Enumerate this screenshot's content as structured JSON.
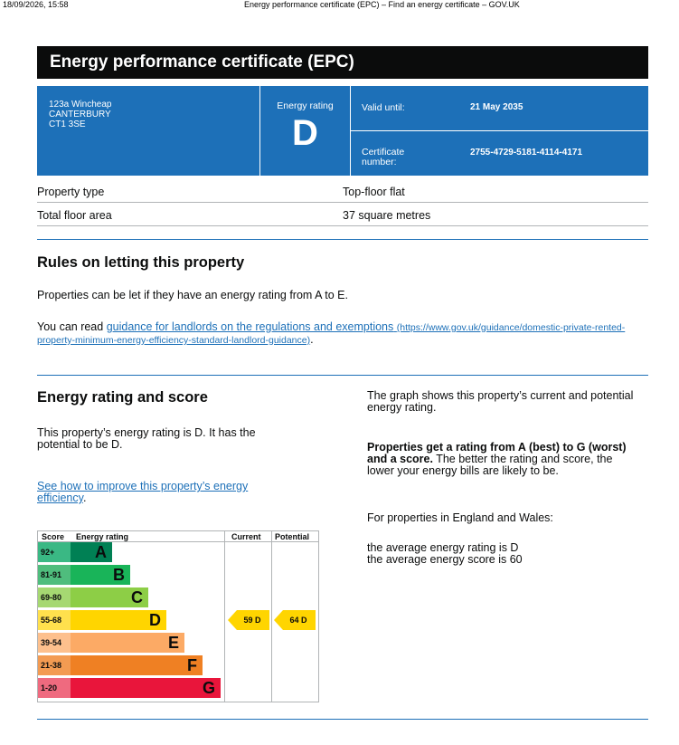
{
  "print_header": {
    "timestamp": "18/09/2026, 15:58",
    "page_title": "Energy performance certificate (EPC) – Find an energy certificate – GOV.UK"
  },
  "title": "Energy performance certificate (EPC)",
  "address": {
    "line1": "123a Wincheap",
    "line2": "CANTERBURY",
    "line3": "CT1 3SE"
  },
  "energy_rating": {
    "label": "Energy rating",
    "letter": "D"
  },
  "valid_until": {
    "label": "Valid until:",
    "value": "21 May 2035"
  },
  "certificate_number": {
    "label": "Certificate number:",
    "value": "2755-4729-5181-4114-4171"
  },
  "property": [
    {
      "key": "Property type",
      "value": "Top-floor flat"
    },
    {
      "key": "Total floor area",
      "value": "37 square metres"
    }
  ],
  "letting": {
    "heading": "Rules on letting this property",
    "para1": "Properties can be let if they have an energy rating from A to E.",
    "para2_prefix": "You can read ",
    "link_text": "guidance for landlords on the regulations and exemptions",
    "link_url": "(https://www.gov.uk/guidance/domestic-private-rented-property-minimum-energy-efficiency-standard-landlord-guidance)",
    "para2_suffix": "."
  },
  "score_section": {
    "heading": "Energy rating and score",
    "para1": "This property’s energy rating is D. It has the potential to be D.",
    "link_text": "See how to improve this property’s energy efficiency",
    "link_suffix": ".",
    "right_para1": "The graph shows this property’s current and potential energy rating.",
    "right_bold": "Properties get a rating from A (best) to G (worst) and a score.",
    "right_para2_rest": " The better the rating and score, the lower your energy bills are likely to be.",
    "right_para3": "For properties in England and Wales:",
    "avg_rating": "the average energy rating is D",
    "avg_score": "the average energy score is 60"
  },
  "chart_data": {
    "type": "table",
    "headers": {
      "score": "Score",
      "rating": "Energy rating",
      "current": "Current",
      "potential": "Potential"
    },
    "bands": [
      {
        "range": "92+",
        "letter": "A",
        "color": "#008054"
      },
      {
        "range": "81-91",
        "letter": "B",
        "color": "#19b459"
      },
      {
        "range": "69-80",
        "letter": "C",
        "color": "#8dce46"
      },
      {
        "range": "55-68",
        "letter": "D",
        "color": "#ffd500"
      },
      {
        "range": "39-54",
        "letter": "E",
        "color": "#fcaa65"
      },
      {
        "range": "21-38",
        "letter": "F",
        "color": "#ef8023"
      },
      {
        "range": "1-20",
        "letter": "G",
        "color": "#e9153b"
      }
    ],
    "current": {
      "score": 59,
      "letter": "D",
      "label": "59 D",
      "color": "#ffd500"
    },
    "potential": {
      "score": 64,
      "letter": "D",
      "label": "64 D",
      "color": "#ffd500"
    }
  }
}
